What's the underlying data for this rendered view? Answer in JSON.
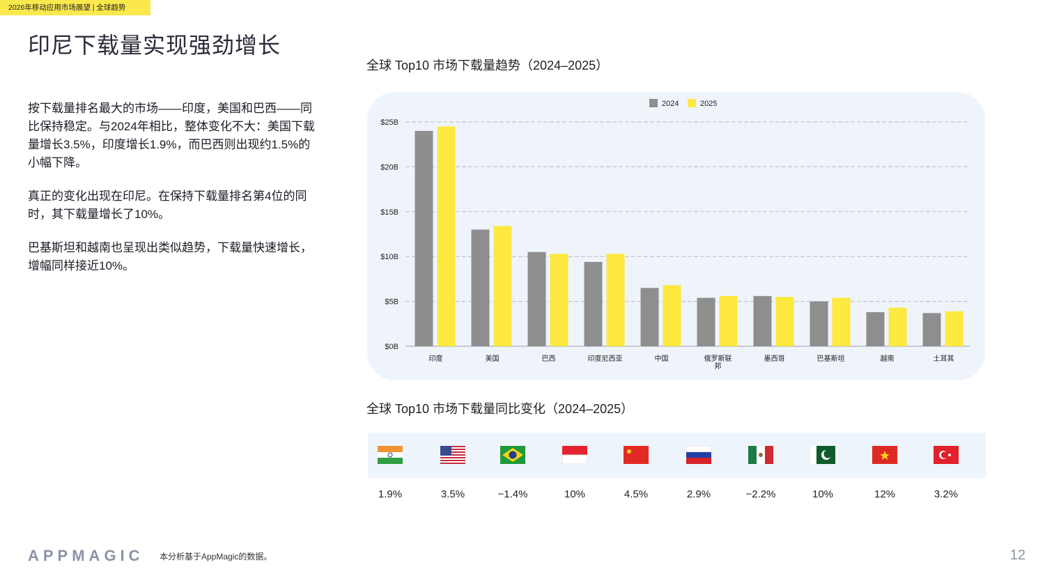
{
  "header": {
    "tag": "2026年移动应用市场展望 | 全球趋势",
    "title": "印尼下载量实现强劲增长"
  },
  "body": {
    "paragraphs": [
      "按下载量排名最大的市场——印度，美国和巴西——同比保持稳定。与2024年相比，整体变化不大：美国下载量增长3.5%，印度增长1.9%，而巴西则出现约1.5%的小幅下降。",
      "真正的变化出现在印尼。在保持下载量排名第4位的同时，其下载量增长了10%。",
      "巴基斯坦和越南也呈现出类似趋势，下载量快速增长，增幅同样接近10%。"
    ]
  },
  "chart_data": [
    {
      "type": "bar",
      "title": "全球 Top10 市场下载量趋势（2024–2025）",
      "categories": [
        "印度",
        "美国",
        "巴西",
        "印度尼西亚",
        "中国",
        "俄罗斯联邦",
        "墨西哥",
        "巴基斯坦",
        "越南",
        "土耳其"
      ],
      "series": [
        {
          "name": "2024",
          "color": "#8e8e8e",
          "values": [
            24.0,
            13.0,
            10.5,
            9.4,
            6.5,
            5.4,
            5.6,
            5.0,
            3.8,
            3.7
          ]
        },
        {
          "name": "2025",
          "color": "#fde93f",
          "values": [
            24.5,
            13.4,
            10.3,
            10.3,
            6.8,
            5.6,
            5.5,
            5.4,
            4.3,
            3.9
          ]
        }
      ],
      "ylim": [
        0,
        25
      ],
      "yticks": [
        "$0B",
        "$5B",
        "$10B",
        "$15B",
        "$20B",
        "$25B"
      ],
      "grid": true,
      "legend": "top-center"
    },
    {
      "type": "table",
      "title": "全球 Top10 市场下载量同比变化（2024–2025）",
      "flags": [
        "india-flag-icon",
        "usa-flag-icon",
        "brazil-flag-icon",
        "indonesia-flag-icon",
        "china-flag-icon",
        "russia-flag-icon",
        "mexico-flag-icon",
        "pakistan-flag-icon",
        "vietnam-flag-icon",
        "turkey-flag-icon"
      ],
      "values": [
        "1.9%",
        "3.5%",
        "−1.4%",
        "10%",
        "4.5%",
        "2.9%",
        "−2.2%",
        "10%",
        "12%",
        "3.2%"
      ]
    }
  ],
  "footer": {
    "logo": "APPMAGIC",
    "note": "本分析基于AppMagic的数据。",
    "page": "12"
  }
}
